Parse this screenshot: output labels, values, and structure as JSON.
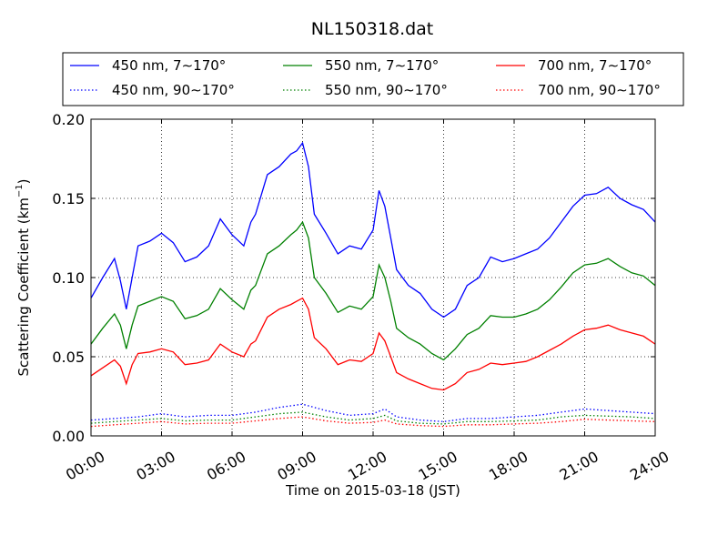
{
  "chart_data": {
    "type": "line",
    "title": "NL150318.dat",
    "xlabel": "Time on 2015-03-18 (JST)",
    "ylabel": "Scattering Coefficient (km",
    "ylabel_sup": "−1",
    "ylabel_close": ")",
    "xlim": [
      "00:00",
      "24:00"
    ],
    "ylim": [
      0.0,
      0.2
    ],
    "x_ticks": [
      "00:00",
      "03:00",
      "06:00",
      "09:00",
      "12:00",
      "15:00",
      "18:00",
      "21:00",
      "24:00"
    ],
    "y_ticks": [
      "0.00",
      "0.05",
      "0.10",
      "0.15",
      "0.20"
    ],
    "grid": true,
    "legend_position": "top",
    "series": [
      {
        "name": "450 nm, 7∼170°",
        "color": "#0000ff",
        "dash": "solid",
        "x": [
          0,
          0.5,
          1,
          1.25,
          1.5,
          1.75,
          2,
          2.5,
          3,
          3.5,
          4,
          4.5,
          5,
          5.5,
          6,
          6.5,
          6.8,
          7,
          7.5,
          8,
          8.5,
          8.75,
          9,
          9.25,
          9.5,
          10,
          10.5,
          11,
          11.5,
          12,
          12.25,
          12.5,
          12.75,
          13,
          13.5,
          14,
          14.5,
          15,
          15.5,
          16,
          16.5,
          17,
          17.5,
          18,
          18.5,
          19,
          19.5,
          20,
          20.5,
          21,
          21.5,
          22,
          22.5,
          23,
          23.5,
          24
        ],
        "y": [
          0.087,
          0.1,
          0.112,
          0.098,
          0.08,
          0.1,
          0.12,
          0.123,
          0.128,
          0.122,
          0.11,
          0.113,
          0.12,
          0.137,
          0.127,
          0.12,
          0.135,
          0.14,
          0.165,
          0.17,
          0.178,
          0.18,
          0.185,
          0.17,
          0.14,
          0.128,
          0.115,
          0.12,
          0.118,
          0.13,
          0.155,
          0.145,
          0.125,
          0.105,
          0.095,
          0.09,
          0.08,
          0.075,
          0.08,
          0.095,
          0.1,
          0.113,
          0.11,
          0.112,
          0.115,
          0.118,
          0.125,
          0.135,
          0.145,
          0.152,
          0.153,
          0.157,
          0.15,
          0.146,
          0.143,
          0.135
        ]
      },
      {
        "name": "550 nm, 7∼170°",
        "color": "#008000",
        "dash": "solid",
        "x": [
          0,
          0.5,
          1,
          1.25,
          1.5,
          1.75,
          2,
          2.5,
          3,
          3.5,
          4,
          4.5,
          5,
          5.5,
          6,
          6.5,
          6.8,
          7,
          7.5,
          8,
          8.5,
          8.75,
          9,
          9.25,
          9.5,
          10,
          10.5,
          11,
          11.5,
          12,
          12.25,
          12.5,
          12.75,
          13,
          13.5,
          14,
          14.5,
          15,
          15.5,
          16,
          16.5,
          17,
          17.5,
          18,
          18.5,
          19,
          19.5,
          20,
          20.5,
          21,
          21.5,
          22,
          22.5,
          23,
          23.5,
          24
        ],
        "y": [
          0.058,
          0.068,
          0.077,
          0.07,
          0.055,
          0.07,
          0.082,
          0.085,
          0.088,
          0.085,
          0.074,
          0.076,
          0.08,
          0.093,
          0.086,
          0.08,
          0.092,
          0.095,
          0.115,
          0.12,
          0.127,
          0.13,
          0.135,
          0.125,
          0.1,
          0.09,
          0.078,
          0.082,
          0.08,
          0.088,
          0.108,
          0.1,
          0.085,
          0.068,
          0.062,
          0.058,
          0.052,
          0.048,
          0.055,
          0.064,
          0.068,
          0.076,
          0.075,
          0.075,
          0.077,
          0.08,
          0.086,
          0.094,
          0.103,
          0.108,
          0.109,
          0.112,
          0.107,
          0.103,
          0.101,
          0.095
        ]
      },
      {
        "name": "700 nm, 7∼170°",
        "color": "#ff0000",
        "dash": "solid",
        "x": [
          0,
          0.5,
          1,
          1.25,
          1.5,
          1.75,
          2,
          2.5,
          3,
          3.5,
          4,
          4.5,
          5,
          5.5,
          6,
          6.5,
          6.8,
          7,
          7.5,
          8,
          8.5,
          8.75,
          9,
          9.25,
          9.5,
          10,
          10.5,
          11,
          11.5,
          12,
          12.25,
          12.5,
          12.75,
          13,
          13.5,
          14,
          14.5,
          15,
          15.5,
          16,
          16.5,
          17,
          17.5,
          18,
          18.5,
          19,
          19.5,
          20,
          20.5,
          21,
          21.5,
          22,
          22.5,
          23,
          23.5,
          24
        ],
        "y": [
          0.038,
          0.043,
          0.048,
          0.044,
          0.033,
          0.045,
          0.052,
          0.053,
          0.055,
          0.053,
          0.045,
          0.046,
          0.048,
          0.058,
          0.053,
          0.05,
          0.058,
          0.06,
          0.075,
          0.08,
          0.083,
          0.085,
          0.087,
          0.08,
          0.062,
          0.055,
          0.045,
          0.048,
          0.047,
          0.052,
          0.065,
          0.06,
          0.05,
          0.04,
          0.036,
          0.033,
          0.03,
          0.029,
          0.033,
          0.04,
          0.042,
          0.046,
          0.045,
          0.046,
          0.047,
          0.05,
          0.054,
          0.058,
          0.063,
          0.067,
          0.068,
          0.07,
          0.067,
          0.065,
          0.063,
          0.058
        ]
      },
      {
        "name": "450 nm, 90∼170°",
        "color": "#0000ff",
        "dash": "dotted",
        "x": [
          0,
          1,
          2,
          3,
          4,
          5,
          6,
          7,
          8,
          9,
          10,
          11,
          12,
          12.5,
          13,
          14,
          15,
          16,
          17,
          18,
          19,
          20,
          21,
          22,
          23,
          24
        ],
        "y": [
          0.01,
          0.011,
          0.012,
          0.014,
          0.012,
          0.013,
          0.013,
          0.015,
          0.018,
          0.02,
          0.016,
          0.013,
          0.014,
          0.017,
          0.012,
          0.01,
          0.009,
          0.011,
          0.011,
          0.012,
          0.013,
          0.015,
          0.017,
          0.016,
          0.015,
          0.014
        ]
      },
      {
        "name": "550 nm, 90∼170°",
        "color": "#008000",
        "dash": "dotted",
        "x": [
          0,
          1,
          2,
          3,
          4,
          5,
          6,
          7,
          8,
          9,
          10,
          11,
          12,
          12.5,
          13,
          14,
          15,
          16,
          17,
          18,
          19,
          20,
          21,
          22,
          23,
          24
        ],
        "y": [
          0.008,
          0.009,
          0.01,
          0.011,
          0.0095,
          0.01,
          0.01,
          0.012,
          0.014,
          0.015,
          0.012,
          0.01,
          0.011,
          0.013,
          0.0095,
          0.008,
          0.0075,
          0.009,
          0.009,
          0.0095,
          0.01,
          0.012,
          0.013,
          0.0125,
          0.012,
          0.011
        ]
      },
      {
        "name": "700 nm, 90∼170°",
        "color": "#ff0000",
        "dash": "dotted",
        "x": [
          0,
          1,
          2,
          3,
          4,
          5,
          6,
          7,
          8,
          9,
          10,
          11,
          12,
          12.5,
          13,
          14,
          15,
          16,
          17,
          18,
          19,
          20,
          21,
          22,
          23,
          24
        ],
        "y": [
          0.006,
          0.007,
          0.008,
          0.009,
          0.0075,
          0.008,
          0.008,
          0.0095,
          0.011,
          0.012,
          0.0095,
          0.008,
          0.0085,
          0.01,
          0.0075,
          0.0065,
          0.006,
          0.007,
          0.007,
          0.0075,
          0.008,
          0.009,
          0.0105,
          0.01,
          0.0095,
          0.009
        ]
      }
    ]
  }
}
